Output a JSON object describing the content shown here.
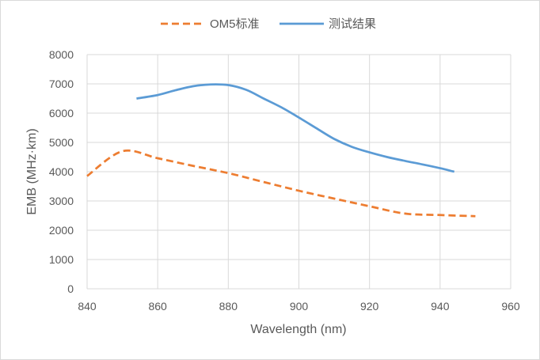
{
  "chart_data": {
    "type": "line",
    "title": "",
    "xlabel": "Wavelength (nm)",
    "ylabel": "EMB (MHz·km)",
    "xlim": [
      840,
      960
    ],
    "ylim": [
      0,
      8000
    ],
    "x_ticks": [
      840,
      860,
      880,
      900,
      920,
      940,
      960
    ],
    "y_ticks": [
      0,
      1000,
      2000,
      3000,
      4000,
      5000,
      6000,
      7000,
      8000
    ],
    "grid": true,
    "legend_position": "top",
    "series": [
      {
        "name": "OM5标准",
        "color": "#ED7D31",
        "style": "dashed",
        "points": [
          [
            840,
            3850
          ],
          [
            850,
            4700
          ],
          [
            860,
            4460
          ],
          [
            870,
            4200
          ],
          [
            880,
            3950
          ],
          [
            890,
            3650
          ],
          [
            900,
            3350
          ],
          [
            910,
            3080
          ],
          [
            920,
            2820
          ],
          [
            930,
            2570
          ],
          [
            940,
            2520
          ],
          [
            950,
            2480
          ]
        ]
      },
      {
        "name": "测试结果",
        "color": "#5B9BD5",
        "style": "solid",
        "points": [
          [
            854,
            6500
          ],
          [
            860,
            6620
          ],
          [
            865,
            6780
          ],
          [
            870,
            6920
          ],
          [
            875,
            6980
          ],
          [
            880,
            6960
          ],
          [
            885,
            6800
          ],
          [
            890,
            6500
          ],
          [
            895,
            6200
          ],
          [
            900,
            5850
          ],
          [
            905,
            5480
          ],
          [
            910,
            5120
          ],
          [
            915,
            4850
          ],
          [
            920,
            4660
          ],
          [
            925,
            4500
          ],
          [
            930,
            4370
          ],
          [
            935,
            4250
          ],
          [
            940,
            4120
          ],
          [
            944,
            4000
          ]
        ]
      }
    ]
  }
}
